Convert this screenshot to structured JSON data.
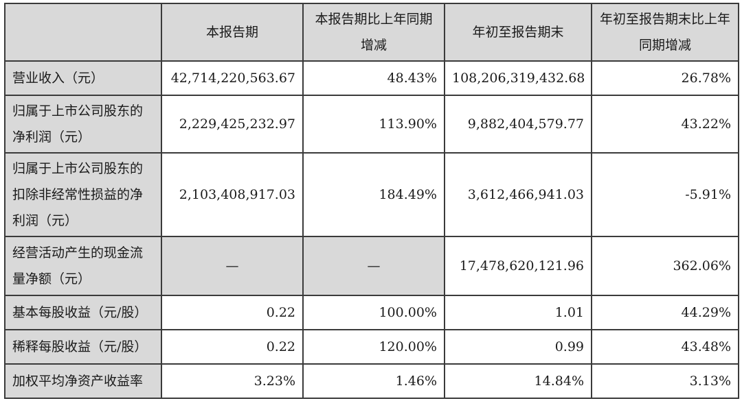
{
  "headers": [
    "本报告期",
    "本报告期比上年同期增减",
    "年初至报告期末",
    "年初至报告期末比上年同期增减"
  ],
  "rows": [
    {
      "label": "营业收入（元）",
      "values": [
        "42,714,220,563.67",
        "48.43%",
        "108,206,319,432.68",
        "26.78%"
      ]
    },
    {
      "label": "归属于上市公司股东的净利润（元）",
      "values": [
        "2,229,425,232.97",
        "113.90%",
        "9,882,404,579.77",
        "43.22%"
      ]
    },
    {
      "label": "归属于上市公司股东的扣除非经常性损益的净利润（元）",
      "values": [
        "2,103,408,917.03",
        "184.49%",
        "3,612,466,941.03",
        "-5.91%"
      ]
    },
    {
      "label": "经营活动产生的现金流量净额（元）",
      "values": [
        "—",
        "—",
        "17,478,620,121.96",
        "362.06%"
      ]
    },
    {
      "label": "基本每股收益（元/股）",
      "values": [
        "0.22",
        "100.00%",
        "1.01",
        "44.29%"
      ]
    },
    {
      "label": "稀释每股收益（元/股）",
      "values": [
        "0.22",
        "120.00%",
        "0.99",
        "43.48%"
      ]
    },
    {
      "label": "加权平均净资产收益率",
      "values": [
        "3.23%",
        "1.46%",
        "14.84%",
        "3.13%"
      ]
    }
  ]
}
